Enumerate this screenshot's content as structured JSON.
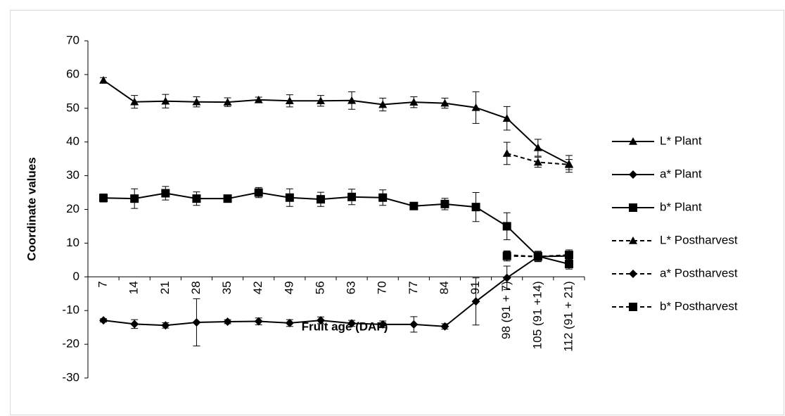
{
  "chart_data": {
    "type": "line",
    "x_label": "Fruit age (DAF)",
    "y_label": "Coordinate values",
    "categories": [
      "7",
      "14",
      "21",
      "28",
      "35",
      "42",
      "49",
      "56",
      "63",
      "70",
      "77",
      "84",
      "91",
      "98 (91 + 7)",
      "105 (91 +14)",
      "112 (91 + 21)"
    ],
    "ylim": [
      -30,
      70
    ],
    "yticks": [
      -30,
      -20,
      -10,
      0,
      10,
      20,
      30,
      40,
      50,
      60,
      70
    ],
    "legend": "right",
    "series": [
      {
        "name": "L* Plant",
        "color": "#000000",
        "marker": "triangle",
        "dash": false,
        "values": [
          58.3,
          51.9,
          52.1,
          51.9,
          51.8,
          52.5,
          52.2,
          52.2,
          52.3,
          51.1,
          51.8,
          51.5,
          50.2,
          47.0,
          38.3,
          33.5
        ],
        "errors": [
          0.8,
          1.9,
          2.0,
          1.5,
          1.3,
          0.8,
          1.8,
          1.6,
          2.6,
          1.9,
          1.6,
          1.5,
          4.7,
          3.5,
          2.5,
          2.5
        ]
      },
      {
        "name": "a* Plant",
        "color": "#000000",
        "marker": "diamond",
        "dash": false,
        "values": [
          -12.9,
          -14.0,
          -14.4,
          -13.5,
          -13.3,
          -13.2,
          -13.7,
          -12.9,
          -13.8,
          -14.1,
          -14.1,
          -14.7,
          -7.3,
          -0.3,
          6.0,
          6.2
        ],
        "errors": [
          0.5,
          1.3,
          0.8,
          7.0,
          0.6,
          1.0,
          1.0,
          1.0,
          0.9,
          1.0,
          2.3,
          0.8,
          7.0,
          3.5,
          1.0,
          1.0
        ]
      },
      {
        "name": "b* Plant",
        "color": "#000000",
        "marker": "square",
        "dash": false,
        "values": [
          23.4,
          23.2,
          24.8,
          23.2,
          23.2,
          25.0,
          23.5,
          23.0,
          23.7,
          23.5,
          21.0,
          21.6,
          20.7,
          15.0,
          6.1,
          3.8
        ],
        "errors": [
          1.2,
          2.9,
          2.0,
          2.0,
          0.8,
          1.5,
          2.6,
          2.1,
          2.3,
          2.3,
          1.0,
          1.7,
          4.3,
          4.0,
          1.5,
          1.5
        ]
      },
      {
        "name": "L* Postharvest",
        "color": "#000000",
        "marker": "triangle",
        "dash": true,
        "values": [
          null,
          null,
          null,
          null,
          null,
          null,
          null,
          null,
          null,
          null,
          null,
          null,
          null,
          36.6,
          34.0,
          33.3
        ],
        "errors": [
          null,
          null,
          null,
          null,
          null,
          null,
          null,
          null,
          null,
          null,
          null,
          null,
          null,
          3.3,
          1.5,
          1.5
        ]
      },
      {
        "name": "a* Postharvest",
        "color": "#000000",
        "marker": "diamond",
        "dash": true,
        "values": [
          null,
          null,
          null,
          null,
          null,
          null,
          null,
          null,
          null,
          null,
          null,
          null,
          null,
          6.5,
          6.0,
          6.5
        ],
        "errors": [
          null,
          null,
          null,
          null,
          null,
          null,
          null,
          null,
          null,
          null,
          null,
          null,
          null,
          1.0,
          1.0,
          1.0
        ]
      },
      {
        "name": "b* Postharvest",
        "color": "#000000",
        "marker": "square",
        "dash": true,
        "values": [
          null,
          null,
          null,
          null,
          null,
          null,
          null,
          null,
          null,
          null,
          null,
          null,
          null,
          6.2,
          6.0,
          6.5
        ],
        "errors": [
          null,
          null,
          null,
          null,
          null,
          null,
          null,
          null,
          null,
          null,
          null,
          null,
          null,
          1.5,
          1.5,
          1.5
        ]
      }
    ]
  }
}
